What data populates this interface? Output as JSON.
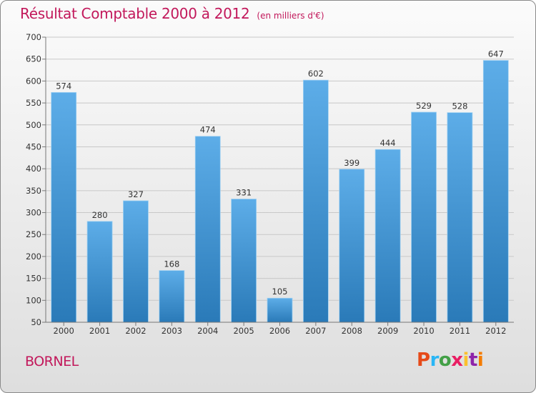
{
  "header": {
    "title": "Résultat Comptable 2000 à 2012",
    "subtitle": "(en milliers d'€)"
  },
  "footer": {
    "commune": "BORNEL",
    "logo_text": "Proxiti",
    "logo_colors": [
      "#e64a19",
      "#29b6f6",
      "#43a047",
      "#e91e63",
      "#fbc02d",
      "#8e24aa",
      "#f57c00"
    ]
  },
  "chart_data": {
    "type": "bar",
    "title": "Résultat Comptable 2000 à 2012",
    "subtitle": "(en milliers d'€)",
    "xlabel": "",
    "ylabel": "",
    "categories": [
      "2000",
      "2001",
      "2002",
      "2003",
      "2004",
      "2005",
      "2006",
      "2007",
      "2008",
      "2009",
      "2010",
      "2011",
      "2012"
    ],
    "values": [
      574,
      280,
      327,
      168,
      474,
      331,
      105,
      602,
      399,
      444,
      529,
      528,
      647
    ],
    "ylim": [
      50,
      700
    ],
    "yticks": [
      50,
      100,
      150,
      200,
      250,
      300,
      350,
      400,
      450,
      500,
      550,
      600,
      650,
      700
    ],
    "grid": true,
    "bar_color_top": "#5dade8",
    "bar_color_bottom": "#2a7ab8"
  }
}
